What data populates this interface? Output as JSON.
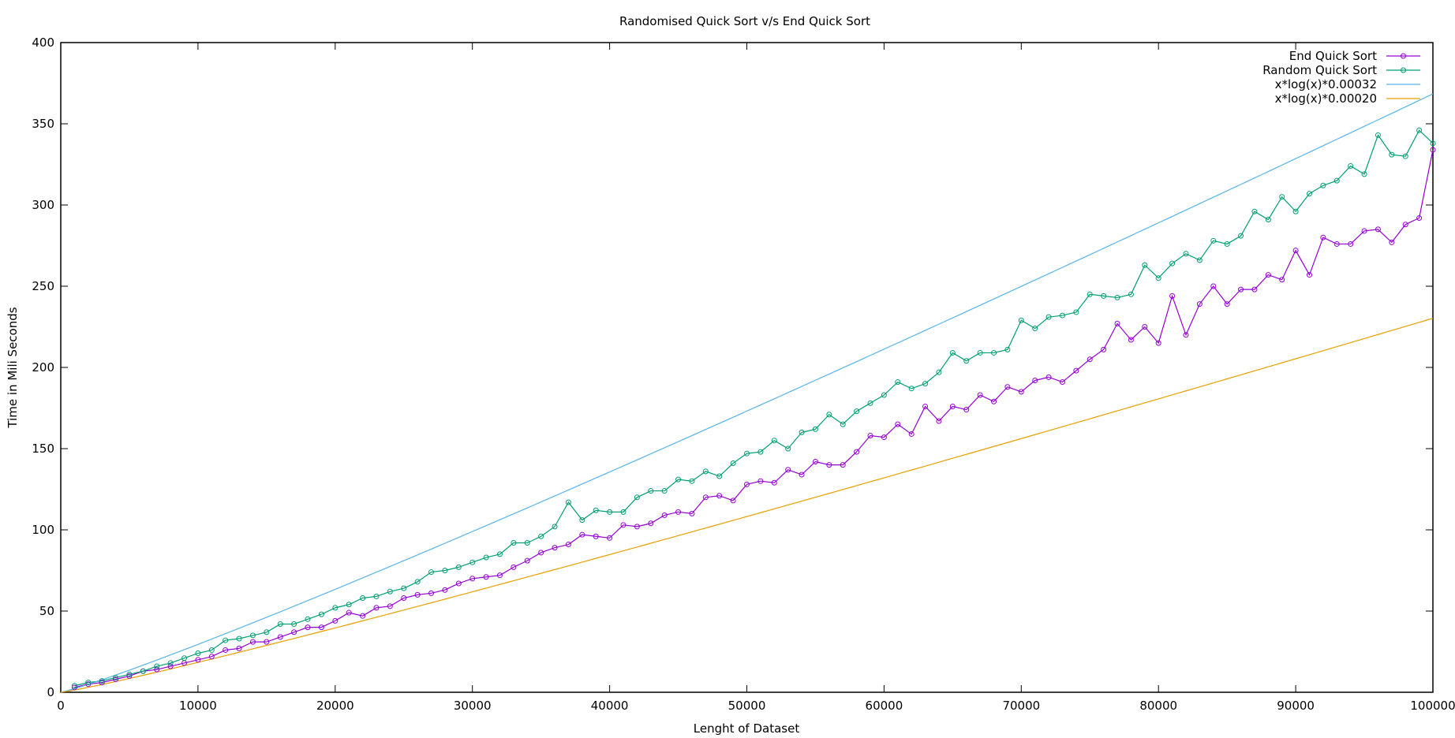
{
  "chart_data": {
    "type": "line",
    "title": "Randomised Quick Sort v/s End Quick Sort",
    "xlabel": "Lenght of Dataset",
    "ylabel": "Time in Mili Seconds",
    "xlim": [
      0,
      100000
    ],
    "ylim": [
      0,
      400
    ],
    "xticks": [
      0,
      10000,
      20000,
      30000,
      40000,
      50000,
      60000,
      70000,
      80000,
      90000,
      100000
    ],
    "yticks": [
      0,
      50,
      100,
      150,
      200,
      250,
      300,
      350,
      400
    ],
    "grid": false,
    "legend_position": "top-right",
    "x": [
      1000,
      2000,
      3000,
      4000,
      5000,
      6000,
      7000,
      8000,
      9000,
      10000,
      11000,
      12000,
      13000,
      14000,
      15000,
      16000,
      17000,
      18000,
      19000,
      20000,
      21000,
      22000,
      23000,
      24000,
      25000,
      26000,
      27000,
      28000,
      29000,
      30000,
      31000,
      32000,
      33000,
      34000,
      35000,
      36000,
      37000,
      38000,
      39000,
      40000,
      41000,
      42000,
      43000,
      44000,
      45000,
      46000,
      47000,
      48000,
      49000,
      50000,
      51000,
      52000,
      53000,
      54000,
      55000,
      56000,
      57000,
      58000,
      59000,
      60000,
      61000,
      62000,
      63000,
      64000,
      65000,
      66000,
      67000,
      68000,
      69000,
      70000,
      71000,
      72000,
      73000,
      74000,
      75000,
      76000,
      77000,
      78000,
      79000,
      80000,
      81000,
      82000,
      83000,
      84000,
      85000,
      86000,
      87000,
      88000,
      89000,
      90000,
      91000,
      92000,
      93000,
      94000,
      95000,
      96000,
      97000,
      98000,
      99000,
      100000
    ],
    "series": [
      {
        "name": "End Quick Sort",
        "color": "#9400d3",
        "markers": true,
        "values": [
          3,
          5,
          6,
          8,
          10,
          13,
          14,
          16,
          18,
          20,
          22,
          26,
          27,
          31,
          31,
          34,
          37,
          40,
          40,
          44,
          49,
          47,
          52,
          53,
          58,
          60,
          61,
          63,
          67,
          70,
          71,
          72,
          77,
          81,
          86,
          89,
          91,
          97,
          96,
          95,
          103,
          102,
          104,
          109,
          111,
          110,
          120,
          121,
          118,
          128,
          130,
          129,
          137,
          134,
          142,
          140,
          140,
          148,
          158,
          157,
          165,
          159,
          176,
          167,
          176,
          174,
          183,
          179,
          188,
          185,
          192,
          194,
          191,
          198,
          205,
          211,
          227,
          217,
          225,
          215,
          244,
          220,
          239,
          250,
          239,
          248,
          248,
          257,
          254,
          272,
          257,
          280,
          276,
          276,
          284,
          285,
          277,
          288,
          292,
          334
        ]
      },
      {
        "name": "Random Quick Sort",
        "color": "#009e73",
        "markers": true,
        "values": [
          4,
          6,
          7,
          9,
          11,
          13,
          16,
          18,
          21,
          24,
          26,
          32,
          33,
          35,
          37,
          42,
          42,
          45,
          48,
          52,
          54,
          58,
          59,
          62,
          64,
          68,
          74,
          75,
          77,
          80,
          83,
          85,
          92,
          92,
          96,
          102,
          117,
          106,
          112,
          111,
          111,
          120,
          124,
          124,
          131,
          130,
          136,
          133,
          141,
          147,
          148,
          155,
          150,
          160,
          162,
          171,
          165,
          173,
          178,
          183,
          191,
          187,
          190,
          197,
          209,
          204,
          209,
          209,
          211,
          229,
          224,
          231,
          232,
          234,
          245,
          244,
          243,
          245,
          263,
          255,
          264,
          270,
          266,
          278,
          276,
          281,
          296,
          291,
          305,
          296,
          307,
          312,
          315,
          324,
          319,
          343,
          331,
          330,
          346,
          338
        ]
      },
      {
        "name": "x*log(x)*0.00032",
        "color": "#56b4e9",
        "markers": false,
        "function": "x*ln(x)*0.00032"
      },
      {
        "name": "x*log(x)*0.00020",
        "color": "#e69f00",
        "markers": false,
        "function": "x*ln(x)*0.00020"
      }
    ]
  }
}
